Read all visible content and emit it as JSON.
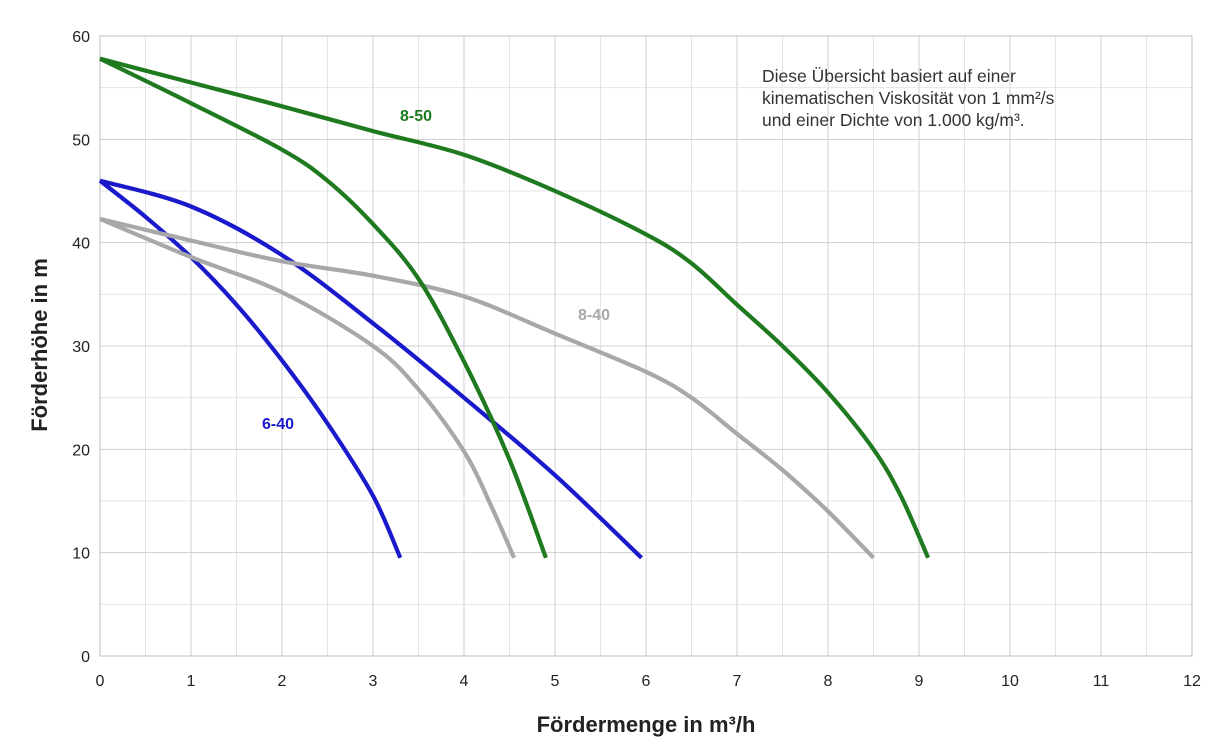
{
  "chart_data": {
    "type": "line",
    "xlabel": "Fördermenge in m³/h",
    "ylabel": "Förderhöhe in m",
    "xlim": [
      0,
      12
    ],
    "ylim": [
      0,
      60
    ],
    "x_ticks": [
      "0",
      "1",
      "2",
      "3",
      "4",
      "5",
      "6",
      "7",
      "8",
      "9",
      "10",
      "11",
      "12"
    ],
    "y_ticks": [
      "0",
      "10",
      "20",
      "30",
      "40",
      "50",
      "60"
    ],
    "grid": true,
    "note": [
      "Diese Übersicht basiert auf einer",
      "kinematischen Viskosität von 1 mm²/s",
      "und einer Dichte von 1.000 kg/m³."
    ],
    "series": [
      {
        "name": "6-40",
        "label_shown": true,
        "color": "#1a1acc",
        "points": [
          [
            0,
            46
          ],
          [
            0.5,
            42.5
          ],
          [
            1,
            38.6
          ],
          [
            1.5,
            34
          ],
          [
            2,
            28.6
          ],
          [
            2.5,
            22.5
          ],
          [
            3,
            15.5
          ],
          [
            3.3,
            9.5
          ]
        ]
      },
      {
        "color": "#1a1acc",
        "points": [
          [
            0,
            46
          ],
          [
            1,
            43.5
          ],
          [
            2,
            38.8
          ],
          [
            3,
            32.2
          ],
          [
            4,
            25
          ],
          [
            5,
            17.5
          ],
          [
            5.95,
            9.5
          ]
        ]
      },
      {
        "color": "#a8a8a8",
        "points": [
          [
            0,
            42.3
          ],
          [
            1,
            38.6
          ],
          [
            2,
            35.2
          ],
          [
            3,
            30
          ],
          [
            3.5,
            25.8
          ],
          [
            4,
            19.8
          ],
          [
            4.3,
            14.5
          ],
          [
            4.55,
            9.5
          ]
        ]
      },
      {
        "name": "8-40",
        "label_shown": true,
        "color": "#a8a8a8",
        "points": [
          [
            0,
            42.3
          ],
          [
            1,
            40.2
          ],
          [
            2,
            38.2
          ],
          [
            3,
            36.8
          ],
          [
            4,
            34.8
          ],
          [
            5,
            31.2
          ],
          [
            6,
            27.5
          ],
          [
            6.5,
            25
          ],
          [
            7,
            21.5
          ],
          [
            7.5,
            18
          ],
          [
            8,
            14
          ],
          [
            8.5,
            9.5
          ]
        ]
      },
      {
        "color": "#1f7a1f",
        "points": [
          [
            0,
            57.8
          ],
          [
            1,
            53.5
          ],
          [
            2,
            49
          ],
          [
            2.5,
            46
          ],
          [
            3,
            41.8
          ],
          [
            3.5,
            36.5
          ],
          [
            4,
            28.5
          ],
          [
            4.5,
            19
          ],
          [
            4.9,
            9.5
          ]
        ]
      },
      {
        "name": "8-50",
        "label_shown": true,
        "color": "#1f7a1f",
        "points": [
          [
            0,
            57.8
          ],
          [
            1,
            55.5
          ],
          [
            2,
            53.2
          ],
          [
            3,
            50.8
          ],
          [
            4,
            48.5
          ],
          [
            5,
            45
          ],
          [
            6,
            40.8
          ],
          [
            6.5,
            38
          ],
          [
            7,
            34
          ],
          [
            7.5,
            30
          ],
          [
            8,
            25.5
          ],
          [
            8.5,
            20
          ],
          [
            8.8,
            15.5
          ],
          [
            9.1,
            9.5
          ]
        ]
      }
    ]
  }
}
